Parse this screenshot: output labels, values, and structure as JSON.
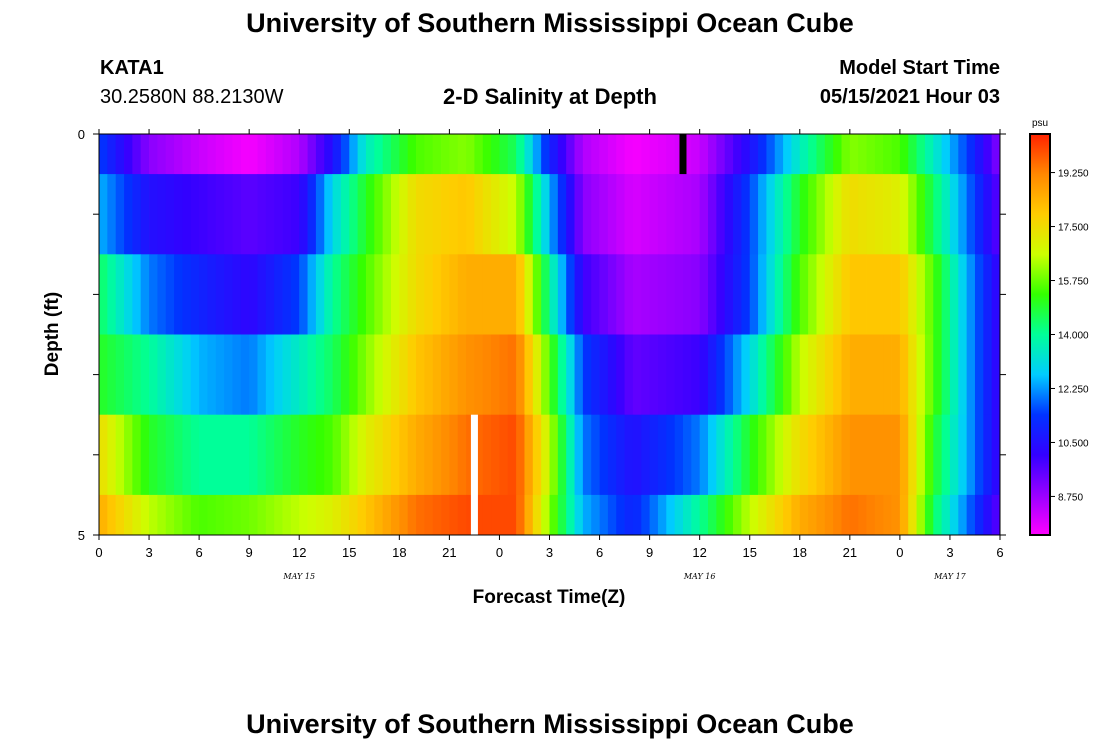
{
  "page": {
    "title_top": "University of Southern Mississippi Ocean Cube",
    "title_bottom": "University of Southern Mississippi Ocean Cube",
    "station_id": "KATA1",
    "station_coords": "30.2580N  88.2130W",
    "subtitle": "2-D Salinity at Depth",
    "model_start_label": "Model Start Time",
    "model_start_value": "05/15/2021 Hour 03"
  },
  "colors": {
    "current_marker": "#000000",
    "now_marker": "#ffffff",
    "palette": [
      "#ff00ff",
      "#9900ff",
      "#3300ff",
      "#0033ff",
      "#00ccff",
      "#00ff99",
      "#33ff00",
      "#ccff00",
      "#ffcc00",
      "#ff8800",
      "#ff2200"
    ]
  },
  "chart_data": {
    "type": "heatmap",
    "title": "2-D Salinity at Depth",
    "xlabel": "Forecast Time(Z)",
    "ylabel": "Depth (ft)",
    "x_tick_labels": [
      "0",
      "3",
      "6",
      "9",
      "12",
      "15",
      "18",
      "21",
      "0",
      "3",
      "6",
      "9",
      "12",
      "15",
      "18",
      "21",
      "0",
      "3",
      "6"
    ],
    "x_tick_hours": [
      0,
      3,
      6,
      9,
      12,
      15,
      18,
      21,
      24,
      27,
      30,
      33,
      36,
      39,
      42,
      45,
      48,
      51,
      54
    ],
    "x_range_hours": [
      0,
      54
    ],
    "date_labels": [
      {
        "text": "MAY 15",
        "hour": 12
      },
      {
        "text": "MAY 16",
        "hour": 36
      },
      {
        "text": "MAY 17",
        "hour": 51
      }
    ],
    "y_tick_labels": [
      "0",
      "5"
    ],
    "y_range": [
      0,
      5
    ],
    "depth_levels": [
      0,
      1,
      2,
      3,
      4,
      5
    ],
    "colorbar": {
      "unit": "psu",
      "min": 7.5,
      "max": 20.5,
      "tick_labels": [
        "19.250",
        "17.500",
        "15.750",
        "14.000",
        "12.250",
        "10.500",
        "8.750"
      ],
      "tick_values": [
        19.25,
        17.5,
        15.75,
        14.0,
        12.25,
        10.5,
        8.75
      ]
    },
    "salinity_keyframes": [
      {
        "hour": 0,
        "values": [
          11.5,
          12.5,
          14.5,
          15.0,
          17.5,
          18.5
        ]
      },
      {
        "hour": 3,
        "values": [
          9.0,
          10.5,
          12.0,
          14.0,
          15.0,
          16.5
        ]
      },
      {
        "hour": 6,
        "values": [
          8.2,
          10.0,
          11.0,
          12.5,
          14.0,
          15.5
        ]
      },
      {
        "hour": 9,
        "values": [
          7.6,
          9.6,
          10.2,
          12.0,
          14.0,
          15.8
        ]
      },
      {
        "hour": 12,
        "values": [
          8.5,
          10.0,
          11.5,
          13.5,
          15.0,
          16.5
        ]
      },
      {
        "hour": 14,
        "values": [
          10.5,
          13.0,
          14.0,
          14.5,
          15.5,
          17.0
        ]
      },
      {
        "hour": 16,
        "values": [
          13.5,
          15.0,
          15.5,
          16.0,
          17.0,
          18.0
        ]
      },
      {
        "hour": 19,
        "values": [
          15.5,
          17.5,
          17.5,
          18.0,
          18.5,
          19.5
        ]
      },
      {
        "hour": 22,
        "values": [
          16.0,
          18.0,
          18.5,
          19.0,
          19.5,
          20.0
        ]
      },
      {
        "hour": 25,
        "values": [
          14.5,
          16.5,
          18.5,
          19.5,
          20.0,
          20.0
        ]
      },
      {
        "hour": 27,
        "values": [
          11.0,
          12.5,
          14.0,
          15.5,
          16.5,
          16.0
        ]
      },
      {
        "hour": 29,
        "values": [
          8.5,
          9.0,
          10.0,
          11.5,
          12.0,
          12.5
        ]
      },
      {
        "hour": 32,
        "values": [
          7.6,
          8.0,
          8.6,
          9.5,
          10.5,
          11.0
        ]
      },
      {
        "hour": 36,
        "values": [
          8.2,
          8.6,
          9.0,
          10.0,
          12.0,
          14.0
        ]
      },
      {
        "hour": 39,
        "values": [
          10.5,
          11.5,
          11.5,
          13.0,
          15.0,
          16.5
        ]
      },
      {
        "hour": 42,
        "values": [
          13.5,
          15.0,
          15.5,
          16.5,
          17.5,
          18.5
        ]
      },
      {
        "hour": 45,
        "values": [
          16.0,
          17.5,
          18.0,
          18.5,
          19.0,
          19.5
        ]
      },
      {
        "hour": 48,
        "values": [
          15.5,
          17.0,
          18.0,
          18.5,
          19.0,
          19.0
        ]
      },
      {
        "hour": 50,
        "values": [
          13.5,
          14.5,
          15.5,
          15.5,
          15.0,
          14.5
        ]
      },
      {
        "hour": 52,
        "values": [
          11.5,
          12.0,
          12.5,
          12.5,
          12.5,
          12.0
        ]
      },
      {
        "hour": 54,
        "values": [
          9.0,
          9.5,
          10.0,
          10.0,
          10.0,
          9.5
        ]
      }
    ],
    "markers": [
      {
        "name": "current-time-marker",
        "hour": 35,
        "depth_from": 0,
        "depth_to": 1,
        "color": "black"
      },
      {
        "name": "now-marker",
        "hour": 22.5,
        "depth_from": 4,
        "depth_to": 5,
        "color": "white"
      }
    ]
  }
}
